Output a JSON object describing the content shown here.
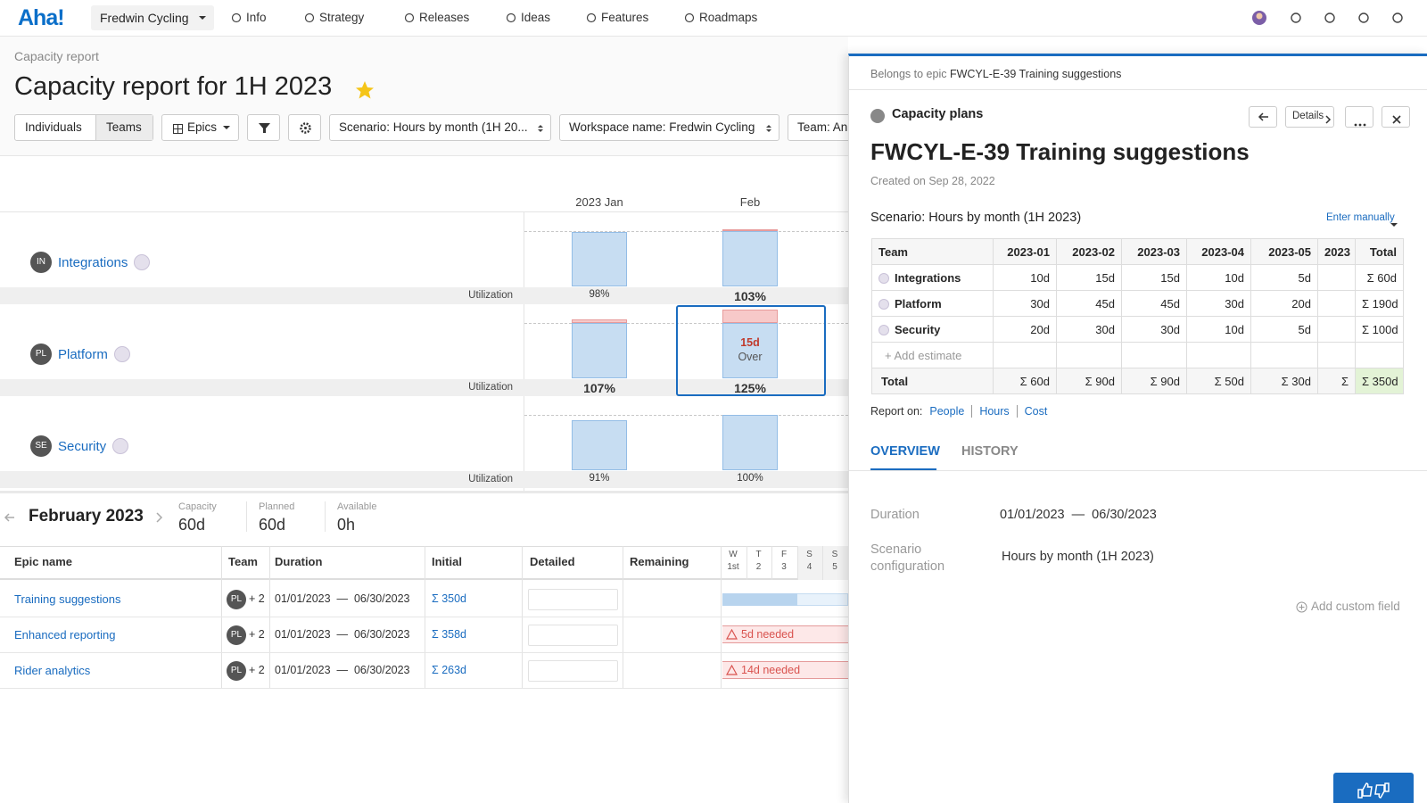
{
  "nav": {
    "logo": "Aha!",
    "workspace": "Fredwin Cycling",
    "items": [
      "Info",
      "Strategy",
      "Releases",
      "Ideas",
      "Features",
      "Roadmaps"
    ]
  },
  "header": {
    "breadcrumb": "Capacity report",
    "title": "Capacity report for 1H 2023"
  },
  "toolbar": {
    "toggle": [
      "Individuals",
      "Teams"
    ],
    "view": "Epics",
    "filters": [
      "Scenario: Hours by month (1H 20...",
      "Workspace name: Fredwin Cycling",
      "Team: An"
    ]
  },
  "chart": {
    "months": [
      "2023 Jan",
      "Feb"
    ],
    "row_label": "Utilization",
    "teams": [
      {
        "initials": "IN",
        "name": "Integrations",
        "utilization": [
          {
            "value": 98,
            "label": "98%"
          },
          {
            "value": 103,
            "label": "103%"
          }
        ]
      },
      {
        "initials": "PL",
        "name": "Platform",
        "utilization": [
          {
            "value": 107,
            "label": "107%"
          },
          {
            "value": 125,
            "label": "125%"
          }
        ]
      },
      {
        "initials": "SE",
        "name": "Security",
        "utilization": [
          {
            "value": 91,
            "label": "91%"
          },
          {
            "value": 100,
            "label": "100%"
          }
        ]
      }
    ],
    "callout": {
      "value": "15d",
      "label": "Over"
    }
  },
  "month_summary": {
    "title": "February 2023",
    "stats": [
      {
        "label": "Capacity",
        "value": "60d"
      },
      {
        "label": "Planned",
        "value": "60d"
      },
      {
        "label": "Available",
        "value": "0h"
      }
    ]
  },
  "epics": {
    "columns": [
      "Epic name",
      "Team",
      "Duration",
      "Initial",
      "Detailed",
      "Remaining"
    ],
    "days": [
      {
        "weekday": "W",
        "day": "1st"
      },
      {
        "weekday": "T",
        "day": "2"
      },
      {
        "weekday": "F",
        "day": "3"
      },
      {
        "weekday": "S",
        "day": "4"
      },
      {
        "weekday": "S",
        "day": "5"
      }
    ],
    "rows": [
      {
        "name": "Training suggestions",
        "team": "PL",
        "team_extra": "+ 2",
        "duration": "01/01/2023  —  06/30/2023",
        "initial": "Σ 350d"
      },
      {
        "name": "Enhanced reporting",
        "team": "PL",
        "team_extra": "+ 2",
        "duration": "01/01/2023  —  06/30/2023",
        "initial": "Σ 358d",
        "alert": "5d needed"
      },
      {
        "name": "Rider analytics",
        "team": "PL",
        "team_extra": "+ 2",
        "duration": "01/01/2023  —  06/30/2023",
        "initial": "Σ 263d",
        "alert": "14d needed"
      }
    ]
  },
  "panel": {
    "breadcrumb_prefix": "Belongs to epic",
    "breadcrumb_epic": "FWCYL-E-39 Training suggestions",
    "section": "Capacity plans",
    "details_button": "Details",
    "title": "FWCYL-E-39 Training suggestions",
    "created": "Created on Sep 28, 2022",
    "scenario": "Scenario: Hours by month (1H 2023)",
    "entry_mode": "Enter manually",
    "estimates": {
      "columns": [
        "Team",
        "2023-01",
        "2023-02",
        "2023-03",
        "2023-04",
        "2023-05",
        "2023",
        "Total"
      ],
      "rows": [
        {
          "team": "Integrations",
          "cells": [
            "10d",
            "15d",
            "15d",
            "10d",
            "5d"
          ],
          "total": "Σ 60d"
        },
        {
          "team": "Platform",
          "cells": [
            "30d",
            "45d",
            "45d",
            "30d",
            "20d"
          ],
          "total": "Σ 190d"
        },
        {
          "team": "Security",
          "cells": [
            "20d",
            "30d",
            "30d",
            "10d",
            "5d"
          ],
          "total": "Σ 100d"
        }
      ],
      "add": "+ Add estimate",
      "totals": {
        "label": "Total",
        "cells": [
          "Σ 60d",
          "Σ 90d",
          "Σ 90d",
          "Σ 50d",
          "Σ 30d"
        ],
        "partial": "Σ",
        "total": "Σ 350d"
      }
    },
    "report_on": {
      "label": "Report on:",
      "options": [
        "People",
        "Hours",
        "Cost"
      ]
    },
    "tabs": [
      "OVERVIEW",
      "HISTORY"
    ],
    "fields": [
      {
        "label": "Duration",
        "value": "01/01/2023  —  06/30/2023"
      },
      {
        "label": "Scenario configuration",
        "value": "Hours by month (1H 2023)"
      }
    ],
    "add_field": "Add custom field"
  }
}
